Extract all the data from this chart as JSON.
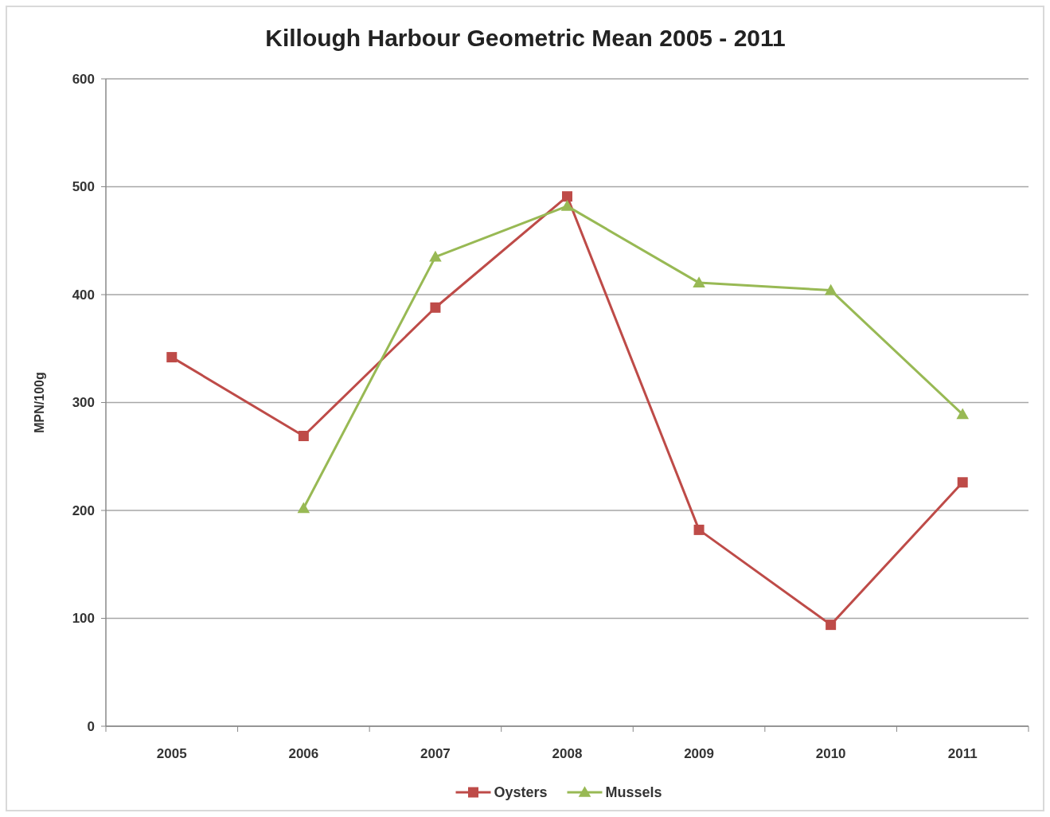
{
  "chart_data": {
    "type": "line",
    "title": "Killough Harbour Geometric Mean 2005 - 2011",
    "ylabel": "MPN/100g",
    "categories": [
      "2005",
      "2006",
      "2007",
      "2008",
      "2009",
      "2010",
      "2011"
    ],
    "series": [
      {
        "name": "Oysters",
        "color": "#be4b48",
        "marker": "square",
        "values": [
          342,
          269,
          388,
          491,
          182,
          94,
          226
        ]
      },
      {
        "name": "Mussels",
        "color": "#98b954",
        "marker": "triangle",
        "values": [
          null,
          202,
          435,
          482,
          411,
          404,
          289
        ]
      }
    ],
    "ylim": [
      0,
      600
    ],
    "yticks": [
      0,
      100,
      200,
      300,
      400,
      500,
      600
    ],
    "grid": "y",
    "legend": "bottom",
    "line_style": "solid"
  }
}
